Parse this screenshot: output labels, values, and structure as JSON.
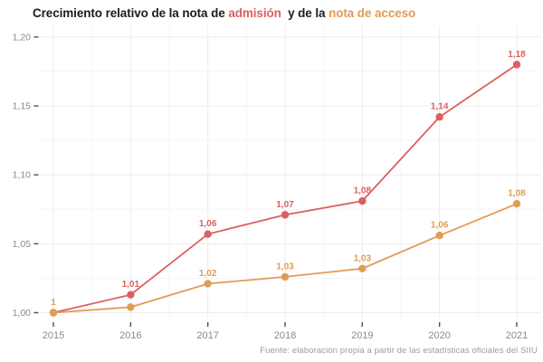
{
  "title": {
    "segments": [
      {
        "text": "Crecimiento relativo de la nota de ",
        "color_key": "title_text"
      },
      {
        "text": "admisión",
        "color_key": "admission"
      },
      {
        "text": "  y de la ",
        "color_key": "title_text"
      },
      {
        "text": "nota de acceso",
        "color_key": "access"
      }
    ]
  },
  "source_note": "Fuente: elaboración propia a partir de las estadísticas oficiales del SIIU",
  "colors": {
    "admission": "#dd5f5f",
    "access": "#e29b54",
    "title_text": "#1d1d1d",
    "axis_label": "#8a8a8a",
    "tick_mark": "#4d4d4d",
    "grid_major": "#ececec",
    "grid_minor": "#f5f5f5",
    "source_text": "#9b9b9b",
    "background": "#ffffff"
  },
  "chart_data": {
    "type": "line",
    "x": [
      2015,
      2016,
      2017,
      2018,
      2019,
      2020,
      2021
    ],
    "x_tick_labels": [
      "2015",
      "2016",
      "2017",
      "2018",
      "2019",
      "2020",
      "2021"
    ],
    "y_ticks": [
      1.0,
      1.05,
      1.1,
      1.15,
      1.2
    ],
    "y_tick_labels": [
      "1,00",
      "1,05",
      "1,10",
      "1,15",
      "1,20"
    ],
    "y_minor_ticks": [
      1.025,
      1.075,
      1.125,
      1.175
    ],
    "ylim": [
      0.995,
      1.205
    ],
    "grid": true,
    "legend": "inline-colored-title",
    "series": [
      {
        "name": "nota de admisión",
        "color_key": "admission",
        "values": [
          1.0,
          1.013,
          1.057,
          1.071,
          1.081,
          1.142,
          1.18
        ],
        "point_labels": [
          "",
          "1,01",
          "1,06",
          "1,07",
          "1,08",
          "1,14",
          "1,18"
        ]
      },
      {
        "name": "nota de acceso",
        "color_key": "access",
        "values": [
          1.0,
          1.004,
          1.021,
          1.026,
          1.032,
          1.056,
          1.079
        ],
        "point_labels": [
          "1",
          "",
          "1,02",
          "1,03",
          "1,03",
          "1,06",
          "1,08"
        ]
      }
    ]
  }
}
